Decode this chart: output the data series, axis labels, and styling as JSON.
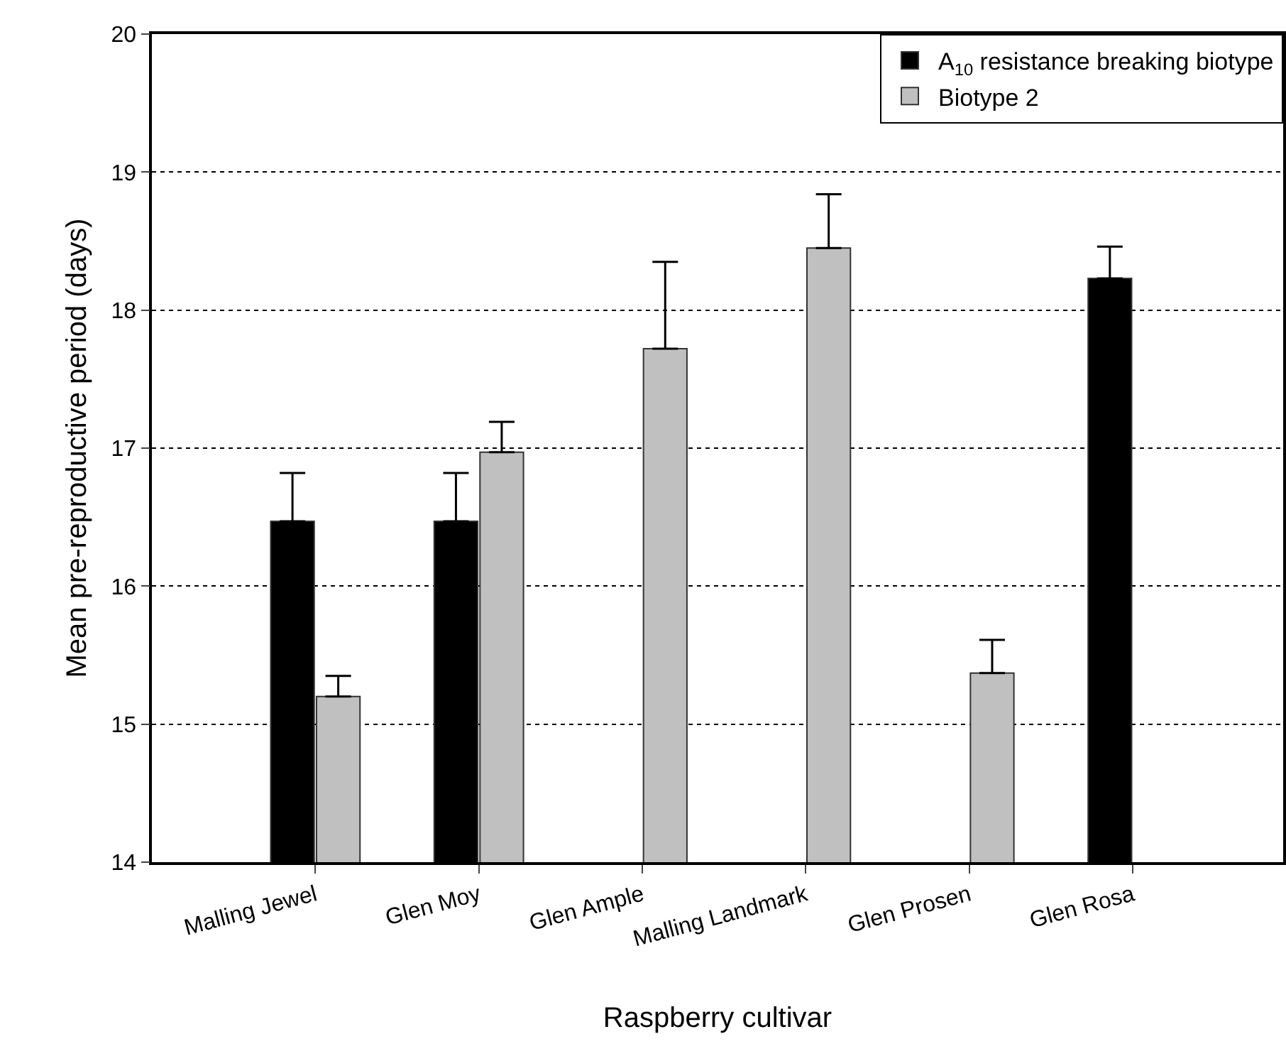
{
  "chart_data": {
    "type": "bar",
    "xlabel": "Raspberry cultivar",
    "ylabel": "Mean pre-reproductive period (days)",
    "categories": [
      "Malling Jewel",
      "Glen Moy",
      "Glen Ample",
      "Malling Landmark",
      "Glen Prosen",
      "Glen Rosa"
    ],
    "series": [
      {
        "name": "A$_{10}$ resistance breaking biotype",
        "color": "#000000",
        "values": [
          16.47,
          16.47,
          null,
          null,
          null,
          18.23
        ],
        "errors": [
          0.35,
          0.35,
          null,
          null,
          null,
          0.23
        ]
      },
      {
        "name": "Biotype 2",
        "color": "#c0c0c0",
        "values": [
          15.2,
          16.97,
          17.72,
          18.45,
          15.37,
          null
        ],
        "errors": [
          0.15,
          0.22,
          0.63,
          0.39,
          0.24,
          null
        ]
      }
    ],
    "ylim": [
      14,
      20
    ],
    "yticks": [
      14,
      15,
      16,
      17,
      18,
      19,
      20
    ],
    "grid": "y",
    "legend": "top right"
  }
}
